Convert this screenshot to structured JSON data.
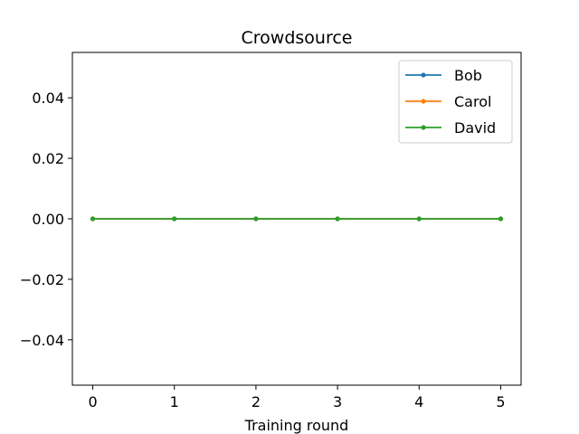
{
  "chart_data": {
    "type": "line",
    "title": "Crowdsource",
    "xlabel": "Training round",
    "ylabel": "",
    "x": [
      0,
      1,
      2,
      3,
      4,
      5
    ],
    "xlim": [
      -0.25,
      5.25
    ],
    "ylim": [
      -0.055,
      0.055
    ],
    "xticks": [
      0,
      1,
      2,
      3,
      4,
      5
    ],
    "yticks": [
      -0.04,
      -0.02,
      0.0,
      0.02,
      0.04
    ],
    "xtick_labels": [
      "0",
      "1",
      "2",
      "3",
      "4",
      "5"
    ],
    "ytick_labels": [
      "−0.04",
      "−0.02",
      "0.00",
      "0.02",
      "0.04"
    ],
    "grid": false,
    "legend_position": "top-right",
    "series": [
      {
        "name": "Bob",
        "color": "#1f77b4",
        "values": [
          0,
          0,
          0,
          0,
          0,
          0
        ]
      },
      {
        "name": "Carol",
        "color": "#ff7f0e",
        "values": [
          0,
          0,
          0,
          0,
          0,
          0
        ]
      },
      {
        "name": "David",
        "color": "#2ca02c",
        "values": [
          0,
          0,
          0,
          0,
          0,
          0
        ]
      }
    ]
  }
}
